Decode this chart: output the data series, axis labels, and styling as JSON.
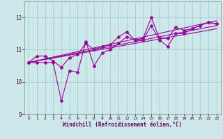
{
  "x_data": [
    0,
    1,
    2,
    3,
    4,
    5,
    6,
    7,
    8,
    9,
    10,
    11,
    12,
    13,
    14,
    15,
    16,
    17,
    18,
    19,
    20,
    21,
    22,
    23
  ],
  "line1": [
    10.6,
    10.8,
    10.8,
    10.65,
    10.45,
    10.75,
    10.85,
    11.2,
    11.0,
    11.1,
    11.15,
    11.4,
    11.55,
    11.3,
    11.35,
    12.0,
    11.35,
    11.35,
    11.7,
    11.6,
    11.65,
    11.75,
    11.85,
    11.8
  ],
  "line2": [
    10.6,
    10.6,
    10.6,
    10.6,
    9.4,
    10.35,
    10.3,
    11.25,
    10.5,
    10.9,
    11.0,
    11.2,
    11.4,
    11.3,
    11.3,
    11.75,
    11.3,
    11.1,
    11.5,
    11.5,
    11.65,
    11.75,
    11.85,
    11.8
  ],
  "line3_x": [
    0,
    23
  ],
  "line3_y": [
    10.6,
    11.9
  ],
  "line4_x": [
    0,
    23
  ],
  "line4_y": [
    10.6,
    11.75
  ],
  "line5_x": [
    0,
    23
  ],
  "line5_y": [
    10.6,
    11.65
  ],
  "line_color": "#990099",
  "bg_color": "#cce8e8",
  "grid_color": "#aacccc",
  "xlabel": "Windchill (Refroidissement éolien,°C)",
  "ylim": [
    9.0,
    12.5
  ],
  "xlim": [
    -0.5,
    23.5
  ],
  "yticks": [
    9,
    10,
    11,
    12
  ],
  "xticks": [
    0,
    1,
    2,
    3,
    4,
    5,
    6,
    7,
    8,
    9,
    10,
    11,
    12,
    13,
    14,
    15,
    16,
    17,
    18,
    19,
    20,
    21,
    22,
    23
  ]
}
